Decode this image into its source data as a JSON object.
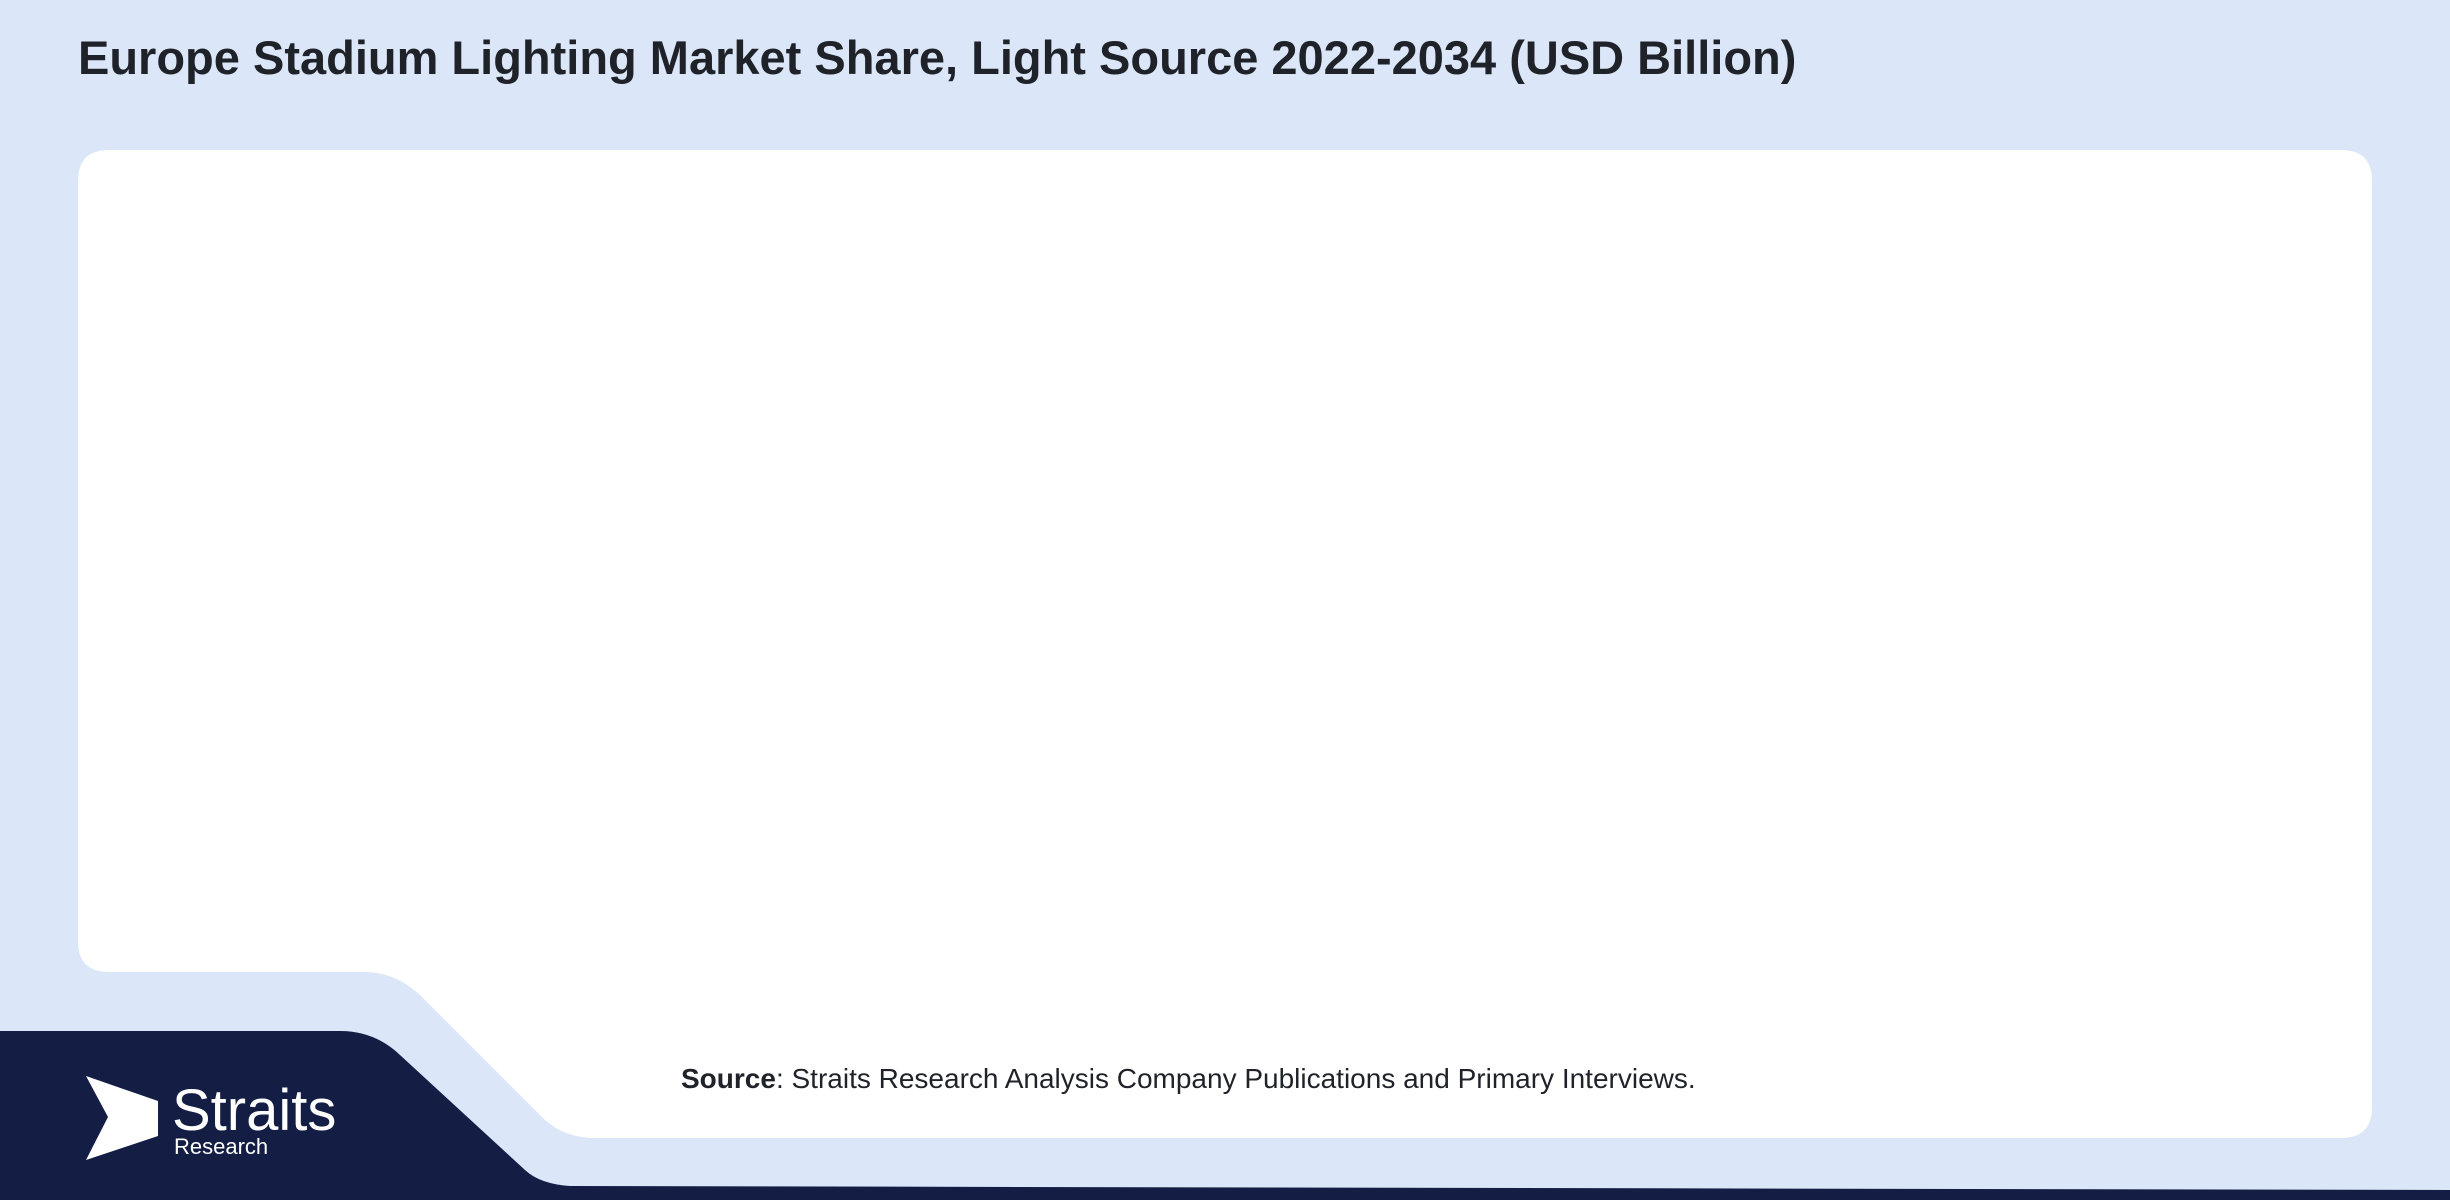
{
  "header": {
    "title": "Europe Stadium Lighting Market Share, Light Source 2022-2034 (USD Billion)"
  },
  "source": {
    "label": "Source",
    "text": ": Straits Research Analysis Company Publications and Primary Interviews."
  },
  "logo": {
    "name": "Straits",
    "sub": "Research"
  }
}
